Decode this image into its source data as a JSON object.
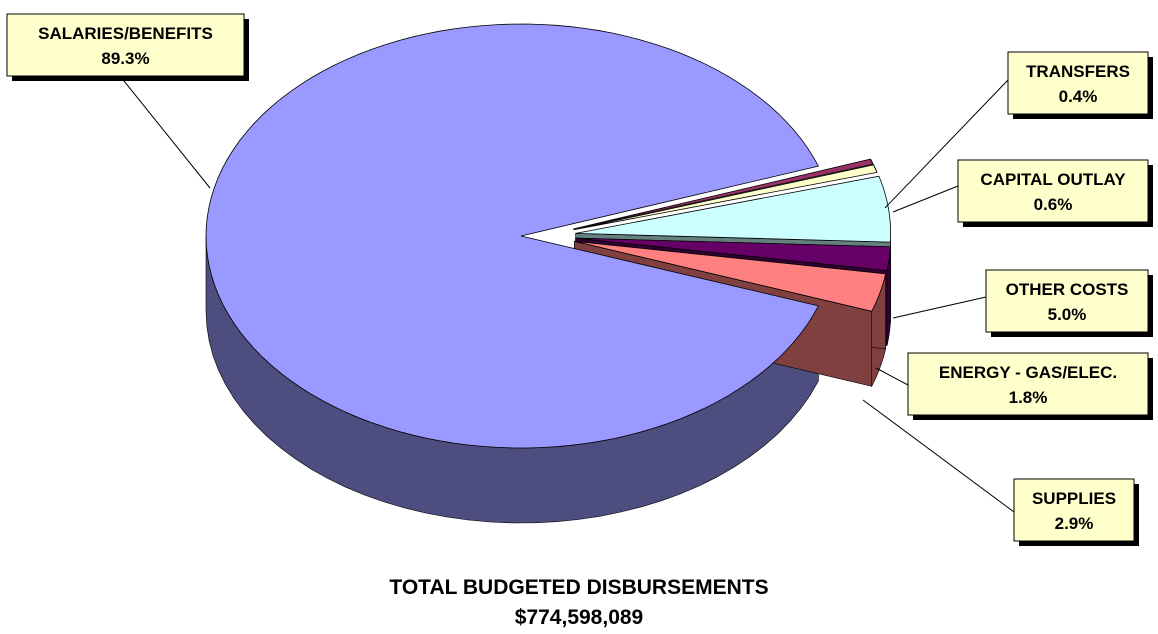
{
  "chart_data": {
    "type": "pie",
    "title": "",
    "slices": [
      {
        "label": "SALARIES/BENEFITS",
        "value": 89.3,
        "pct_label": "89.3%",
        "color": "#9999ff",
        "side_color": "#4d4d80",
        "exploded": false
      },
      {
        "label": "TRANSFERS",
        "value": 0.4,
        "pct_label": "0.4%",
        "color": "#993366",
        "side_color": "#4d1a33",
        "exploded": true
      },
      {
        "label": "CAPITAL OUTLAY",
        "value": 0.6,
        "pct_label": "0.6%",
        "color": "#ffffcc",
        "side_color": "#808066",
        "exploded": true
      },
      {
        "label": "OTHER COSTS",
        "value": 5.0,
        "pct_label": "5.0%",
        "color": "#ccffff",
        "side_color": "#668080",
        "exploded": true
      },
      {
        "label": "ENERGY - GAS/ELEC.",
        "value": 1.8,
        "pct_label": "1.8%",
        "color": "#660066",
        "side_color": "#330033",
        "exploded": true
      },
      {
        "label": "SUPPLIES",
        "value": 2.9,
        "pct_label": "2.9%",
        "color": "#ff8080",
        "side_color": "#804040",
        "exploded": true
      }
    ]
  },
  "footer": {
    "line1": "TOTAL BUDGETED DISBURSEMENTS",
    "line2": "$774,598,089"
  }
}
